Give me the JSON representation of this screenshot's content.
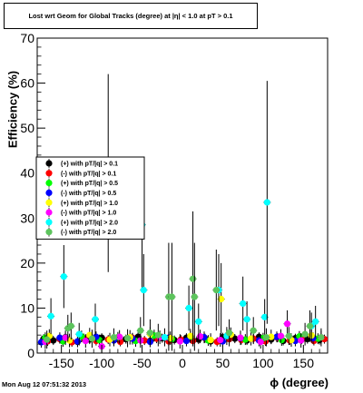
{
  "chart_data": {
    "type": "scatter",
    "title": "Lost wrt Geom for Global Tracks (degree) at |η| < 1.0 at pT > 0.1",
    "xlabel": "ϕ (degree)",
    "ylabel": "Efficiency (%)",
    "xlim": [
      -180,
      180
    ],
    "ylim": [
      0,
      70
    ],
    "x_ticks": [
      -150,
      -100,
      -50,
      0,
      50,
      100,
      150
    ],
    "y_ticks": [
      0,
      10,
      20,
      30,
      40,
      50,
      60,
      70
    ],
    "grid": false,
    "legend_position": "middle-left",
    "series": [
      {
        "name": "(+) with pT/|q| > 0.1",
        "color": "#000000",
        "points": [
          [
            -172,
            3.2,
            1
          ],
          [
            -160,
            2.8,
            1
          ],
          [
            -145,
            3.5,
            1
          ],
          [
            -130,
            2.5,
            1
          ],
          [
            -115,
            3.0,
            1
          ],
          [
            -100,
            3.4,
            1
          ],
          [
            -85,
            2.9,
            1
          ],
          [
            -70,
            3.1,
            1
          ],
          [
            -55,
            3.6,
            1
          ],
          [
            -40,
            2.7,
            1
          ],
          [
            -25,
            3.3,
            1
          ],
          [
            -10,
            2.9,
            1
          ],
          [
            5,
            3.4,
            1
          ],
          [
            20,
            3.0,
            1
          ],
          [
            35,
            2.6,
            1
          ],
          [
            50,
            3.5,
            1
          ],
          [
            65,
            3.2,
            1
          ],
          [
            80,
            2.8,
            1
          ],
          [
            95,
            3.6,
            1
          ],
          [
            110,
            3.0,
            1
          ],
          [
            125,
            2.7,
            1
          ],
          [
            140,
            3.3,
            1
          ],
          [
            155,
            3.1,
            1
          ],
          [
            170,
            2.9,
            1
          ]
        ]
      },
      {
        "name": "(-) with pT/|q| > 0.1",
        "color": "#ff0000",
        "points": [
          [
            -167,
            2.6,
            1
          ],
          [
            -152,
            3.1,
            1
          ],
          [
            -137,
            2.4,
            1
          ],
          [
            -122,
            3.3,
            1
          ],
          [
            -107,
            2.7,
            1
          ],
          [
            -92,
            3.0,
            1
          ],
          [
            -77,
            2.5,
            1
          ],
          [
            -62,
            3.4,
            1
          ],
          [
            -47,
            2.8,
            1
          ],
          [
            -32,
            3.2,
            1
          ],
          [
            -17,
            2.6,
            1
          ],
          [
            -2,
            3.0,
            1
          ],
          [
            13,
            2.7,
            1
          ],
          [
            28,
            3.3,
            1
          ],
          [
            43,
            2.5,
            1
          ],
          [
            58,
            3.1,
            1
          ],
          [
            73,
            2.9,
            1
          ],
          [
            88,
            3.2,
            1
          ],
          [
            103,
            2.6,
            1
          ],
          [
            118,
            3.4,
            1
          ],
          [
            133,
            2.8,
            1
          ],
          [
            148,
            3.0,
            1
          ],
          [
            163,
            2.7,
            1
          ],
          [
            176,
            3.1,
            1
          ]
        ]
      },
      {
        "name": "(+) with pT/|q| > 0.5",
        "color": "#00ff00",
        "points": [
          [
            -170,
            3.4,
            1.2
          ],
          [
            -148,
            2.6,
            1.2
          ],
          [
            -125,
            3.7,
            1.3
          ],
          [
            -103,
            2.9,
            1.2
          ],
          [
            -80,
            3.5,
            1.2
          ],
          [
            -58,
            2.7,
            1.3
          ],
          [
            -35,
            3.9,
            1.3
          ],
          [
            -13,
            3.1,
            1.2
          ],
          [
            10,
            3.6,
            1.3
          ],
          [
            32,
            2.8,
            1.2
          ],
          [
            55,
            3.8,
            1.3
          ],
          [
            78,
            3.0,
            1.2
          ],
          [
            100,
            3.3,
            1.2
          ],
          [
            123,
            2.9,
            1.3
          ],
          [
            145,
            3.7,
            1.2
          ],
          [
            168,
            3.2,
            1.2
          ]
        ]
      },
      {
        "name": "(-) with pT/|q| > 0.5",
        "color": "#0000ff",
        "points": [
          [
            -175,
            2.4,
            1.2
          ],
          [
            -152,
            3.4,
            1.2
          ],
          [
            -130,
            2.6,
            1.3
          ],
          [
            -107,
            3.6,
            1.2
          ],
          [
            -85,
            2.8,
            1.2
          ],
          [
            -62,
            3.2,
            1.3
          ],
          [
            -40,
            2.5,
            1.2
          ],
          [
            -17,
            3.4,
            1.3
          ],
          [
            5,
            2.7,
            1.2
          ],
          [
            27,
            3.5,
            1.3
          ],
          [
            50,
            2.6,
            1.2
          ],
          [
            72,
            3.3,
            1.2
          ],
          [
            95,
            2.8,
            1.3
          ],
          [
            117,
            3.6,
            1.2
          ],
          [
            140,
            2.7,
            1.2
          ],
          [
            162,
            3.3,
            1.3
          ]
        ]
      },
      {
        "name": "(+) with pT/|q| > 1.0",
        "color": "#ffff00",
        "points": [
          [
            -165,
            3.8,
            1.5
          ],
          [
            -140,
            2.8,
            1.5
          ],
          [
            -115,
            4.0,
            1.6
          ],
          [
            -90,
            3.0,
            1.5
          ],
          [
            -65,
            3.5,
            1.6
          ],
          [
            -40,
            4.2,
            1.6
          ],
          [
            -15,
            3.3,
            1.5
          ],
          [
            10,
            3.8,
            1.6
          ],
          [
            35,
            2.9,
            1.5
          ],
          [
            48,
            12.0,
            8
          ],
          [
            60,
            4.1,
            1.6
          ],
          [
            85,
            3.2,
            1.5
          ],
          [
            110,
            3.6,
            1.6
          ],
          [
            135,
            2.9,
            1.5
          ],
          [
            160,
            3.9,
            1.6
          ]
        ]
      },
      {
        "name": "(-) with pT/|q| > 1.0",
        "color": "#ff00ff",
        "points": [
          [
            -170,
            2.5,
            1.5
          ],
          [
            -145,
            3.4,
            1.6
          ],
          [
            -120,
            2.7,
            1.5
          ],
          [
            -100,
            1.5,
            1.5
          ],
          [
            -78,
            3.6,
            1.5
          ],
          [
            -52,
            2.8,
            1.6
          ],
          [
            -28,
            3.5,
            1.5
          ],
          [
            -3,
            2.6,
            1.6
          ],
          [
            22,
            3.7,
            1.5
          ],
          [
            47,
            2.9,
            1.5
          ],
          [
            72,
            3.4,
            1.6
          ],
          [
            97,
            2.5,
            1.5
          ],
          [
            122,
            3.8,
            1.5
          ],
          [
            130,
            6.5,
            3
          ],
          [
            147,
            2.8,
            1.6
          ],
          [
            172,
            3.5,
            1.5
          ]
        ]
      },
      {
        "name": "(+) with pT/|q| > 2.0",
        "color": "#00ffff",
        "points": [
          [
            -163,
            8.2,
            4
          ],
          [
            -147,
            17.0,
            7
          ],
          [
            -128,
            4.2,
            2.5
          ],
          [
            -108,
            7.5,
            3.5
          ],
          [
            -92,
            40.0,
            22
          ],
          [
            -50,
            28.5,
            14
          ],
          [
            -48,
            14.0,
            8
          ],
          [
            -22,
            3.5,
            2
          ],
          [
            8,
            10.0,
            5
          ],
          [
            20,
            7.0,
            4
          ],
          [
            45,
            14.0,
            8
          ],
          [
            55,
            3.8,
            2
          ],
          [
            75,
            11.0,
            6
          ],
          [
            80,
            7.5,
            4
          ],
          [
            102,
            8.0,
            4
          ],
          [
            105,
            33.5,
            27
          ],
          [
            160,
            6.0,
            3
          ],
          [
            165,
            7.0,
            3.5
          ]
        ]
      },
      {
        "name": "(-) with pT/|q| > 2.0",
        "color": "#5dc45d",
        "points": [
          [
            -168,
            3.0,
            2
          ],
          [
            -142,
            5.5,
            3
          ],
          [
            -138,
            6.0,
            3
          ],
          [
            -112,
            3.2,
            2
          ],
          [
            -85,
            3.5,
            2
          ],
          [
            -68,
            3.3,
            2
          ],
          [
            -52,
            5.0,
            3
          ],
          [
            -40,
            4.5,
            3
          ],
          [
            -30,
            4.0,
            2.5
          ],
          [
            -17,
            12.5,
            12
          ],
          [
            -13,
            12.5,
            12
          ],
          [
            13,
            16.5,
            15
          ],
          [
            15,
            12.5,
            12
          ],
          [
            42,
            14.0,
            9
          ],
          [
            58,
            4.5,
            3
          ],
          [
            88,
            5.0,
            3
          ],
          [
            104,
            3.5,
            2
          ],
          [
            132,
            3.8,
            2
          ],
          [
            152,
            4.2,
            2.5
          ],
          [
            158,
            6.0,
            3.5
          ],
          [
            172,
            3.5,
            2
          ]
        ]
      }
    ]
  },
  "footer": {
    "datestamp": "Mon Aug 12 07:51:32 2013"
  }
}
